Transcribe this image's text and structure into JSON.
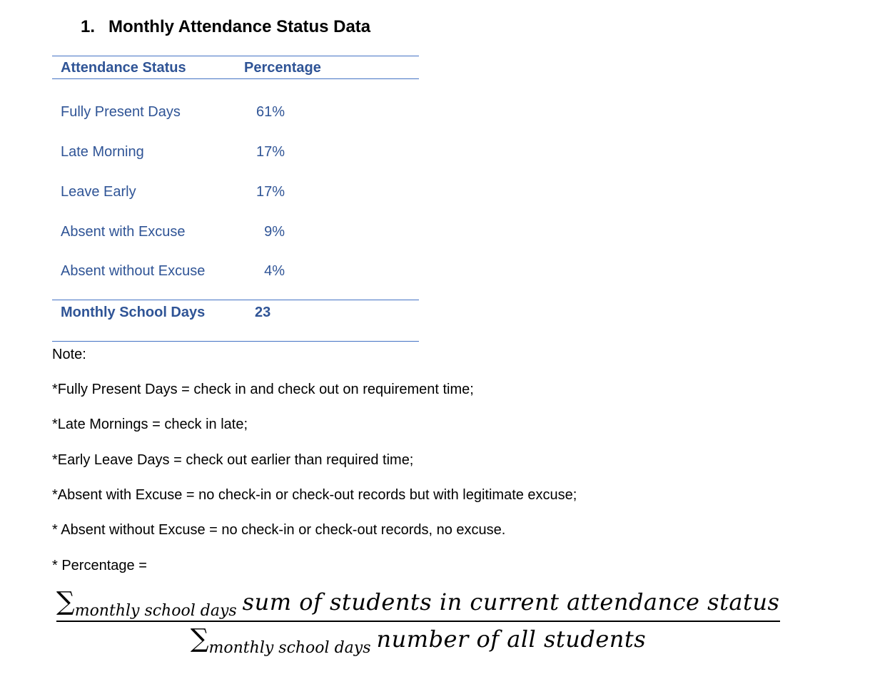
{
  "heading": {
    "number": "1.",
    "title": "Monthly Attendance Status Data"
  },
  "table": {
    "headers": {
      "status": "Attendance Status",
      "percentage": "Percentage"
    },
    "rows": [
      {
        "status": "Fully Present Days",
        "percentage": "61%"
      },
      {
        "status": "Late Morning",
        "percentage": "17%"
      },
      {
        "status": "Leave Early",
        "percentage": "17%"
      },
      {
        "status": "Absent with Excuse",
        "percentage": "9%"
      },
      {
        "status": "Absent without Excuse",
        "percentage": "4%"
      }
    ],
    "total": {
      "label": "Monthly School Days",
      "value": "23"
    }
  },
  "notes": {
    "title": "Note:",
    "items": [
      "*Fully Present Days = check in and check out on requirement time;",
      "*Late Mornings = check in late;",
      "*Early Leave Days = check out earlier than required time;",
      "*Absent with Excuse = no check-in or check-out records but with legitimate excuse;",
      "* Absent without Excuse = no check-in or check-out records, no excuse.",
      "* Percentage ="
    ]
  },
  "formula": {
    "sigma": "∑",
    "subscript": "monthly school days",
    "numerator": "sum of  students in current attendance status",
    "denominator": "number of all students"
  },
  "colors": {
    "table_text": "#2f5496",
    "table_rule": "#4472c4"
  }
}
